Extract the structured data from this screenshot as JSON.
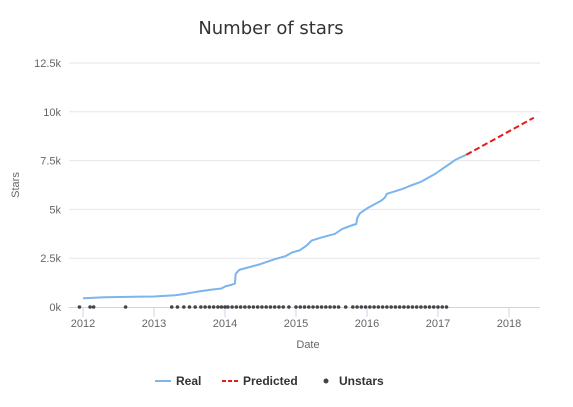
{
  "chart_data": {
    "type": "line",
    "title": "Number of stars",
    "xlabel": "Date",
    "ylabel": "Stars",
    "x_range": [
      2011.9,
      2018.4
    ],
    "ylim": [
      0,
      12500
    ],
    "x_ticks": [
      {
        "value": 2012,
        "label": "2012"
      },
      {
        "value": 2013,
        "label": "2013"
      },
      {
        "value": 2014,
        "label": "2014"
      },
      {
        "value": 2015,
        "label": "2015"
      },
      {
        "value": 2016,
        "label": "2016"
      },
      {
        "value": 2017,
        "label": "2017"
      },
      {
        "value": 2018,
        "label": "2018"
      }
    ],
    "y_ticks": [
      {
        "value": 0,
        "label": "0k"
      },
      {
        "value": 2500,
        "label": "2.5k"
      },
      {
        "value": 5000,
        "label": "5k"
      },
      {
        "value": 7500,
        "label": "7.5k"
      },
      {
        "value": 10000,
        "label": "10k"
      },
      {
        "value": 12500,
        "label": "12.5k"
      }
    ],
    "grid": true,
    "legend_position": "bottom",
    "series": [
      {
        "name": "Real",
        "style": "line",
        "color": "#7cb5ec",
        "points": [
          [
            2012.0,
            450
          ],
          [
            2012.3,
            500
          ],
          [
            2012.7,
            520
          ],
          [
            2013.0,
            540
          ],
          [
            2013.3,
            600
          ],
          [
            2013.45,
            680
          ],
          [
            2013.6,
            780
          ],
          [
            2013.8,
            880
          ],
          [
            2013.95,
            950
          ],
          [
            2014.0,
            1050
          ],
          [
            2014.1,
            1150
          ],
          [
            2014.14,
            1200
          ],
          [
            2014.15,
            1700
          ],
          [
            2014.2,
            1900
          ],
          [
            2014.35,
            2050
          ],
          [
            2014.5,
            2200
          ],
          [
            2014.7,
            2450
          ],
          [
            2014.85,
            2600
          ],
          [
            2014.95,
            2800
          ],
          [
            2015.05,
            2900
          ],
          [
            2015.15,
            3150
          ],
          [
            2015.22,
            3400
          ],
          [
            2015.35,
            3550
          ],
          [
            2015.55,
            3750
          ],
          [
            2015.65,
            4000
          ],
          [
            2015.8,
            4200
          ],
          [
            2015.85,
            4250
          ],
          [
            2015.86,
            4550
          ],
          [
            2015.9,
            4800
          ],
          [
            2016.0,
            5050
          ],
          [
            2016.2,
            5450
          ],
          [
            2016.25,
            5600
          ],
          [
            2016.28,
            5800
          ],
          [
            2016.5,
            6050
          ],
          [
            2016.6,
            6200
          ],
          [
            2016.75,
            6400
          ],
          [
            2016.85,
            6600
          ],
          [
            2016.95,
            6800
          ],
          [
            2017.05,
            7050
          ],
          [
            2017.15,
            7300
          ],
          [
            2017.25,
            7550
          ],
          [
            2017.4,
            7800
          ]
        ]
      },
      {
        "name": "Predicted",
        "style": "dashed",
        "color": "#e41a1c",
        "points": [
          [
            2017.4,
            7800
          ],
          [
            2018.35,
            9700
          ]
        ]
      },
      {
        "name": "Unstars",
        "style": "scatter",
        "color": "#434348",
        "y": 0,
        "x": [
          2011.95,
          2012.1,
          2012.15,
          2012.6,
          2013.25,
          2013.33,
          2013.42,
          2013.5,
          2013.58,
          2013.66,
          2013.72,
          2013.78,
          2013.84,
          2013.9,
          2013.95,
          2014.0,
          2014.04,
          2014.1,
          2014.16,
          2014.22,
          2014.28,
          2014.34,
          2014.4,
          2014.46,
          2014.52,
          2014.58,
          2014.64,
          2014.7,
          2014.76,
          2014.82,
          2014.9,
          2015.0,
          2015.06,
          2015.12,
          2015.18,
          2015.24,
          2015.3,
          2015.36,
          2015.42,
          2015.48,
          2015.54,
          2015.6,
          2015.7,
          2015.8,
          2015.86,
          2015.92,
          2015.98,
          2016.04,
          2016.1,
          2016.16,
          2016.22,
          2016.28,
          2016.34,
          2016.4,
          2016.46,
          2016.52,
          2016.58,
          2016.64,
          2016.7,
          2016.76,
          2016.82,
          2016.88,
          2016.94,
          2017.0,
          2017.06,
          2017.12
        ]
      }
    ]
  }
}
